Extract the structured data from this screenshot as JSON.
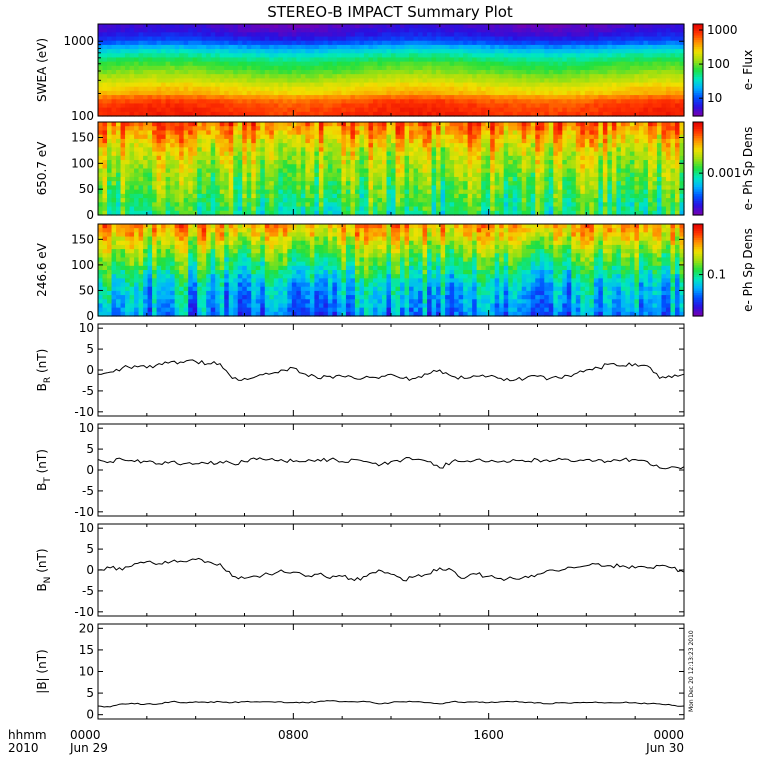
{
  "title": "STEREO-B IMPACT Summary Plot",
  "colors": {
    "line": "#000000",
    "frame": "#000000",
    "background": "#ffffff",
    "colormap": [
      "#7a00b0",
      "#2a10e0",
      "#0050ff",
      "#00b0ff",
      "#00e8c0",
      "#20e040",
      "#a0e010",
      "#f0e000",
      "#ff9000",
      "#ff3000",
      "#e00000"
    ]
  },
  "xaxis": {
    "label_row1": "hhmm",
    "label_row2": "2010",
    "ticks": [
      {
        "top": "0000",
        "bottom": "Jun 29",
        "hour": 0
      },
      {
        "top": "0800",
        "bottom": "",
        "hour": 8
      },
      {
        "top": "1600",
        "bottom": "",
        "hour": 16
      },
      {
        "top": "0000",
        "bottom": "Jun 30",
        "hour": 24
      }
    ]
  },
  "stamp": "Mon Dec 20 12:13:23 2010",
  "chart_data": [
    {
      "type": "heatmap",
      "panel": "swea",
      "ylabel": "SWEA (eV)",
      "yscale": "log",
      "ylim": [
        100,
        1700
      ],
      "yticks": [
        100,
        1000
      ],
      "ytick_labels": [
        "100",
        "1000"
      ],
      "x_range_hours": [
        0,
        24
      ],
      "colorbar": {
        "label": "e- Flux",
        "scale": "log",
        "tick_labels": [
          "10",
          "100",
          "1000"
        ],
        "ticks": [
          10,
          100,
          1000
        ],
        "range": [
          3,
          1500
        ]
      },
      "flux_profile": {
        "energy_eV": [
          100,
          150,
          200,
          300,
          400,
          600,
          800,
          1000,
          1300,
          1700
        ],
        "flux": [
          900,
          700,
          300,
          150,
          90,
          45,
          20,
          8,
          5,
          4
        ]
      }
    },
    {
      "type": "heatmap",
      "panel": "pad_650",
      "ylabel": "650.7 eV",
      "ylim": [
        0,
        180
      ],
      "yticks": [
        0,
        50,
        100,
        150
      ],
      "ytick_labels": [
        "0",
        "50",
        "100",
        "150"
      ],
      "x_range_hours": [
        0,
        24
      ],
      "colorbar": {
        "label": "e- Ph Sp Dens",
        "tick_labels": [
          "0.001"
        ]
      },
      "level_profile": {
        "pitch_angle": [
          0,
          60,
          120,
          180
        ],
        "level": [
          0.45,
          0.55,
          0.65,
          0.85
        ]
      }
    },
    {
      "type": "heatmap",
      "panel": "pad_246",
      "ylabel": "246.6 eV",
      "ylim": [
        0,
        180
      ],
      "yticks": [
        0,
        50,
        100,
        150
      ],
      "ytick_labels": [
        "0",
        "50",
        "100",
        "150"
      ],
      "x_range_hours": [
        0,
        24
      ],
      "colorbar": {
        "label": "e- Ph Sp Dens",
        "tick_labels": [
          "0.1"
        ]
      },
      "level_profile": {
        "pitch_angle": [
          0,
          60,
          120,
          180
        ],
        "level": [
          0.25,
          0.35,
          0.55,
          0.8
        ]
      }
    },
    {
      "type": "line",
      "panel": "br",
      "ylabel_main": "B",
      "ylabel_sub": "R",
      "ylabel_unit": "(nT)",
      "ylim": [
        -11,
        11
      ],
      "yticks": [
        -10,
        -5,
        0,
        5,
        10
      ],
      "ytick_labels": [
        "-10",
        "-5",
        "0",
        "5",
        "10"
      ],
      "x_hours": [
        0,
        0.5,
        1,
        1.5,
        2,
        2.5,
        3,
        3.5,
        4,
        4.5,
        5,
        5.5,
        6,
        6.5,
        7,
        7.5,
        8,
        8.5,
        9,
        9.5,
        10,
        10.5,
        11,
        11.5,
        12,
        12.5,
        13,
        13.5,
        14,
        14.5,
        15,
        15.5,
        16,
        16.5,
        17,
        17.5,
        18,
        18.5,
        19,
        19.5,
        20,
        20.5,
        21,
        21.5,
        22,
        22.5,
        23,
        23.5,
        24
      ],
      "values": [
        -1,
        -0.5,
        0.5,
        1,
        0.5,
        1.5,
        2,
        1.8,
        2,
        1.5,
        1.5,
        -2,
        -2,
        -1.5,
        -1,
        0,
        0.5,
        -1,
        -2,
        -1.5,
        -1.5,
        -2,
        -1.5,
        -2,
        -1,
        -2,
        -2,
        -1,
        0,
        -1.5,
        -2,
        -1.5,
        -1.5,
        -2,
        -2.5,
        -2,
        -1.5,
        -2,
        -2,
        -1,
        0,
        0.5,
        1.5,
        1,
        1.5,
        1,
        -2,
        -1.8,
        -1
      ]
    },
    {
      "type": "line",
      "panel": "bt",
      "ylabel_main": "B",
      "ylabel_sub": "T",
      "ylabel_unit": "(nT)",
      "ylim": [
        -11,
        11
      ],
      "yticks": [
        -10,
        -5,
        0,
        5,
        10
      ],
      "ytick_labels": [
        "-10",
        "-5",
        "0",
        "5",
        "10"
      ],
      "x_hours": [
        0,
        0.5,
        1,
        1.5,
        2,
        2.5,
        3,
        3.5,
        4,
        4.5,
        5,
        5.5,
        6,
        6.5,
        7,
        7.5,
        8,
        8.5,
        9,
        9.5,
        10,
        10.5,
        11,
        11.5,
        12,
        12.5,
        13,
        13.5,
        14,
        14.5,
        15,
        15.5,
        16,
        16.5,
        17,
        17.5,
        18,
        18.5,
        19,
        19.5,
        20,
        20.5,
        21,
        21.5,
        22,
        22.5,
        23,
        23.5,
        24
      ],
      "values": [
        2.5,
        2,
        2.5,
        2,
        2,
        1.5,
        2,
        1.5,
        1.5,
        1.5,
        2,
        1.5,
        2,
        2.5,
        2.5,
        2.5,
        2,
        2,
        2.5,
        2.5,
        2,
        2.5,
        2,
        1,
        2,
        2.5,
        2.5,
        2,
        0.5,
        2,
        2,
        2.5,
        2,
        2,
        2.5,
        2,
        2.5,
        2,
        2.5,
        2,
        2.5,
        2.5,
        2,
        2.5,
        2.5,
        2,
        0.5,
        0.8,
        0.8
      ]
    },
    {
      "type": "line",
      "panel": "bn",
      "ylabel_main": "B",
      "ylabel_sub": "N",
      "ylabel_unit": "(nT)",
      "ylim": [
        -11,
        11
      ],
      "yticks": [
        -10,
        -5,
        0,
        5,
        10
      ],
      "ytick_labels": [
        "-10",
        "-5",
        "0",
        "5",
        "10"
      ],
      "x_hours": [
        0,
        0.5,
        1,
        1.5,
        2,
        2.5,
        3,
        3.5,
        4,
        4.5,
        5,
        5.5,
        6,
        6.5,
        7,
        7.5,
        8,
        8.5,
        9,
        9.5,
        10,
        10.5,
        11,
        11.5,
        12,
        12.5,
        13,
        13.5,
        14,
        14.5,
        15,
        15.5,
        16,
        16.5,
        17,
        17.5,
        18,
        18.5,
        19,
        19.5,
        20,
        20.5,
        21,
        21.5,
        22,
        22.5,
        23,
        23.5,
        24
      ],
      "values": [
        0,
        0.5,
        0,
        1.5,
        2,
        1.5,
        2,
        2,
        2.5,
        2,
        1.5,
        -1.5,
        -2,
        -1.5,
        -1,
        0,
        -0.5,
        -1.5,
        -1,
        -2,
        -1.5,
        -2.5,
        -1.5,
        0,
        -1,
        -2.5,
        -1.5,
        -1,
        0.5,
        0,
        -2,
        -1,
        -1.5,
        -2,
        -2,
        -1.5,
        -1,
        0,
        0,
        0.5,
        1,
        1.5,
        1,
        1,
        0.5,
        0.5,
        1,
        0.5,
        -0.5
      ]
    },
    {
      "type": "line",
      "panel": "btot",
      "ylabel_main": "|B| (nT)",
      "ylim": [
        -1,
        21
      ],
      "yticks": [
        0,
        5,
        10,
        15,
        20
      ],
      "ytick_labels": [
        "0",
        "5",
        "10",
        "15",
        "20"
      ],
      "x_hours": [
        0,
        0.5,
        1,
        1.5,
        2,
        2.5,
        3,
        3.5,
        4,
        4.5,
        5,
        5.5,
        6,
        6.5,
        7,
        7.5,
        8,
        8.5,
        9,
        9.5,
        10,
        10.5,
        11,
        11.5,
        12,
        12.5,
        13,
        13.5,
        14,
        14.5,
        15,
        15.5,
        16,
        16.5,
        17,
        17.5,
        18,
        18.5,
        19,
        19.5,
        20,
        20.5,
        21,
        21.5,
        22,
        22.5,
        23,
        23.5,
        24
      ],
      "values": [
        2,
        1.8,
        2.5,
        2.5,
        2.5,
        2.5,
        3,
        2.8,
        3,
        2.8,
        3,
        2.8,
        3,
        3,
        3,
        3,
        2.8,
        2.8,
        3,
        3.2,
        3,
        3,
        3,
        2.5,
        2.8,
        3,
        3,
        2.8,
        2.5,
        3,
        2.8,
        3,
        2.8,
        3,
        3,
        2.8,
        2.8,
        2.5,
        2.8,
        2.8,
        2.8,
        2.8,
        2.8,
        2.8,
        2.8,
        2.5,
        2.5,
        2.2,
        2
      ]
    }
  ]
}
